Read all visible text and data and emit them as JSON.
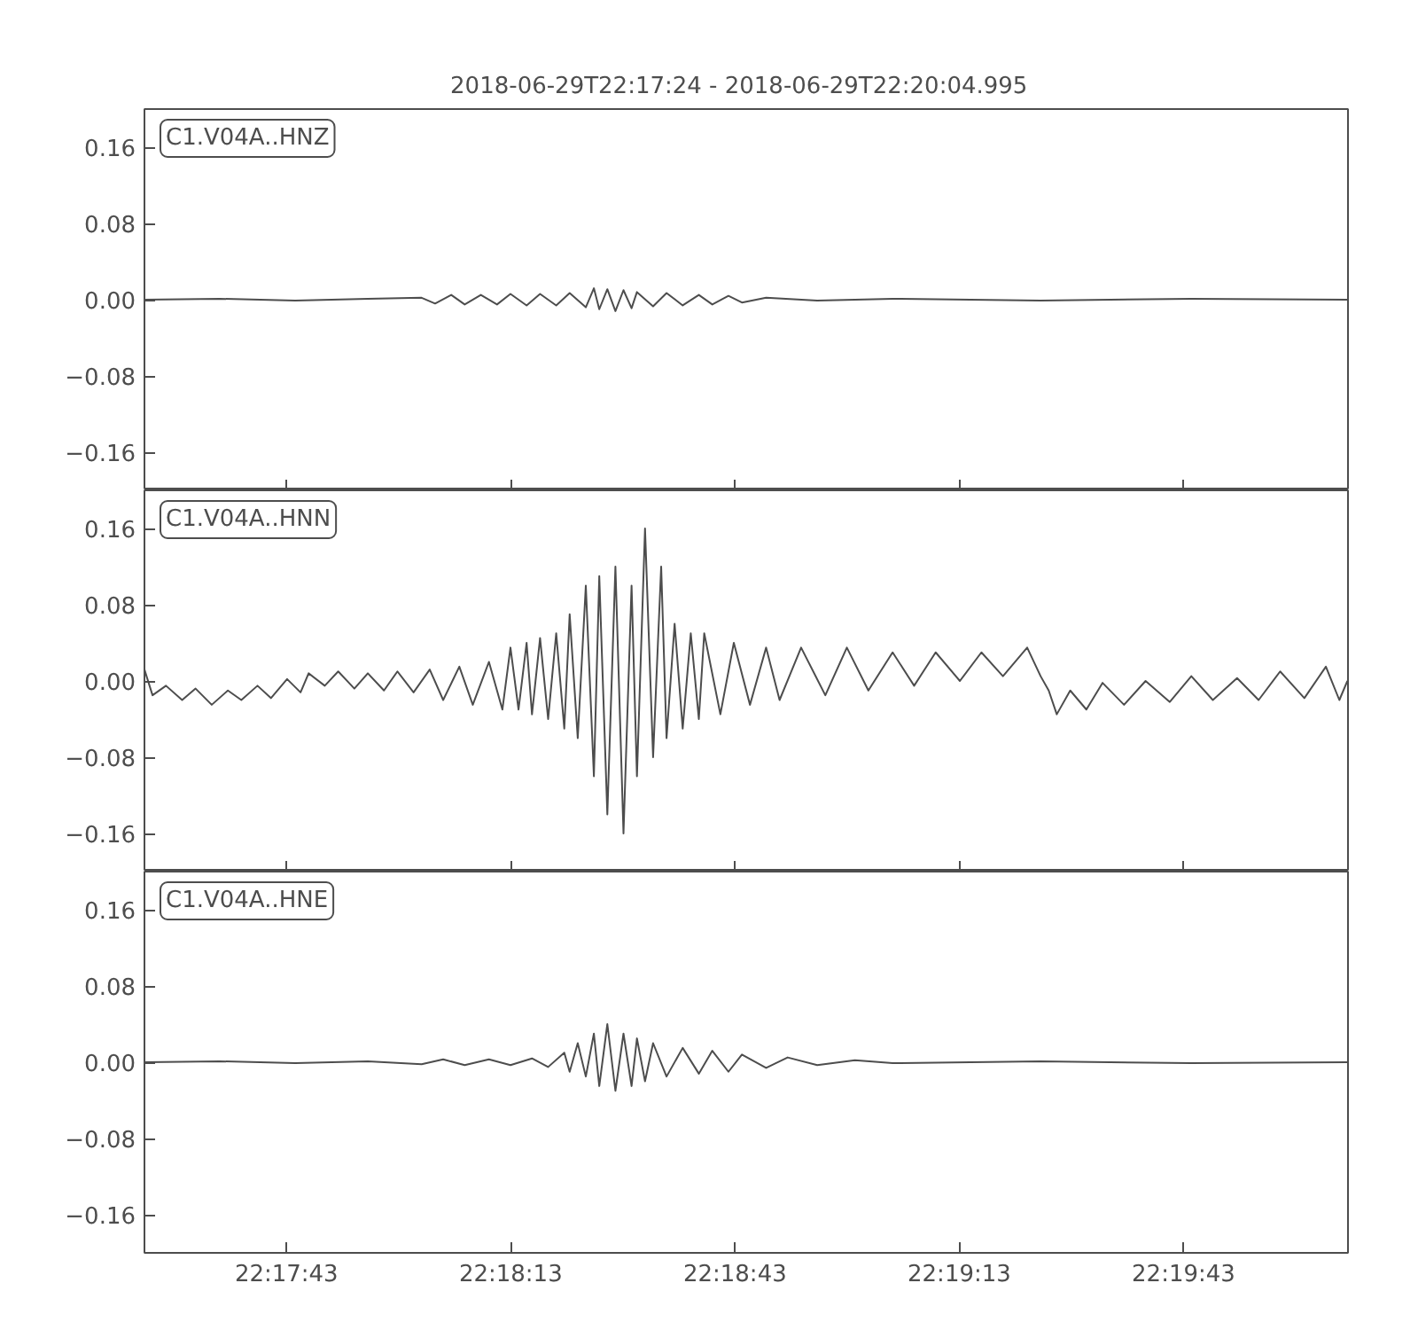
{
  "chart_data": [
    {
      "type": "line",
      "title": "2018-06-29T22:17:24  -  2018-06-29T22:20:04.995",
      "annotations": [
        "C1.V04A..HNZ"
      ],
      "xlim": [
        22.29,
        22.334721
      ],
      "xticks": [
        {
          "value": 22.295278,
          "label": null
        },
        {
          "value": 22.303611,
          "label": null
        },
        {
          "value": 22.311944,
          "label": null
        },
        {
          "value": 22.320278,
          "label": null
        },
        {
          "value": 22.328611,
          "label": null
        }
      ],
      "ylim": [
        -0.2,
        0.2
      ],
      "yticks": [
        {
          "value": 0.16,
          "label": "0.16"
        },
        {
          "value": 0.08,
          "label": "0.08"
        },
        {
          "value": 0,
          "label": "0.00"
        },
        {
          "value": -0.08,
          "label": "−0.08"
        },
        {
          "value": -0.16,
          "label": "−0.16"
        }
      ],
      "tick_labels": "y",
      "grid": false,
      "series": [
        {
          "color": "#4d4d4d",
          "x": [
            22.29,
            22.2928,
            22.2956,
            22.2983,
            22.3003,
            22.3008,
            22.3014,
            22.3019,
            22.3025,
            22.3031,
            22.3036,
            22.3042,
            22.3047,
            22.3053,
            22.3058,
            22.3064,
            22.3067,
            22.3069,
            22.3072,
            22.3075,
            22.3078,
            22.3081,
            22.3083,
            22.3089,
            22.3094,
            22.31,
            22.3106,
            22.3111,
            22.3117,
            22.3122,
            22.3131,
            22.315,
            22.3178,
            22.3233,
            22.3289,
            22.3347
          ],
          "values": [
            0,
            0.001,
            -0.001,
            0.001,
            0.002,
            -0.004,
            0.005,
            -0.005,
            0.005,
            -0.005,
            0.006,
            -0.006,
            0.006,
            -0.006,
            0.007,
            -0.008,
            0.012,
            -0.01,
            0.011,
            -0.012,
            0.01,
            -0.009,
            0.008,
            -0.007,
            0.007,
            -0.006,
            0.005,
            -0.005,
            0.004,
            -0.003,
            0.002,
            -0.001,
            0.001,
            -0.001,
            0.001,
            0
          ]
        }
      ]
    },
    {
      "type": "line",
      "annotations": [
        "C1.V04A..HNN"
      ],
      "xlim": [
        22.29,
        22.334721
      ],
      "xticks": [
        {
          "value": 22.295278,
          "label": null
        },
        {
          "value": 22.303611,
          "label": null
        },
        {
          "value": 22.311944,
          "label": null
        },
        {
          "value": 22.320278,
          "label": null
        },
        {
          "value": 22.328611,
          "label": null
        }
      ],
      "ylim": [
        -0.2,
        0.2
      ],
      "yticks": [
        {
          "value": 0.16,
          "label": "0.16"
        },
        {
          "value": 0.08,
          "label": "0.08"
        },
        {
          "value": 0,
          "label": "0.00"
        },
        {
          "value": -0.08,
          "label": "−0.08"
        },
        {
          "value": -0.16,
          "label": "−0.16"
        }
      ],
      "tick_labels": "y",
      "grid": false,
      "series": [
        {
          "color": "#4d4d4d",
          "x": [
            22.29,
            22.2903,
            22.2908,
            22.2914,
            22.2919,
            22.2925,
            22.2931,
            22.2936,
            22.2942,
            22.2947,
            22.2953,
            22.2958,
            22.2961,
            22.2967,
            22.2972,
            22.2978,
            22.2983,
            22.2989,
            22.2994,
            22.3,
            22.3006,
            22.3011,
            22.3017,
            22.3022,
            22.3028,
            22.3033,
            22.3036,
            22.3039,
            22.3042,
            22.3044,
            22.3047,
            22.305,
            22.3053,
            22.3056,
            22.3058,
            22.3061,
            22.3064,
            22.3067,
            22.3069,
            22.3072,
            22.3075,
            22.3078,
            22.3081,
            22.3083,
            22.3086,
            22.3089,
            22.3092,
            22.3094,
            22.3097,
            22.31,
            22.3103,
            22.3106,
            22.3108,
            22.3114,
            22.3119,
            22.3125,
            22.3131,
            22.3136,
            22.3144,
            22.3153,
            22.3161,
            22.3169,
            22.3178,
            22.3186,
            22.3194,
            22.3203,
            22.3211,
            22.3219,
            22.3228,
            22.3233,
            22.3236,
            22.3239,
            22.3244,
            22.325,
            22.3256,
            22.3264,
            22.3272,
            22.3281,
            22.3289,
            22.3297,
            22.3306,
            22.3314,
            22.3322,
            22.3331,
            22.3339,
            22.3344,
            22.3347
          ],
          "values": [
            0.012,
            -0.015,
            -0.005,
            -0.02,
            -0.008,
            -0.025,
            -0.01,
            -0.02,
            -0.005,
            -0.018,
            0.002,
            -0.012,
            0.008,
            -0.005,
            0.01,
            -0.008,
            0.008,
            -0.01,
            0.01,
            -0.012,
            0.012,
            -0.02,
            0.015,
            -0.025,
            0.02,
            -0.03,
            0.035,
            -0.03,
            0.04,
            -0.035,
            0.045,
            -0.04,
            0.05,
            -0.05,
            0.07,
            -0.06,
            0.1,
            -0.1,
            0.11,
            -0.14,
            0.12,
            -0.16,
            0.1,
            -0.1,
            0.16,
            -0.08,
            0.12,
            -0.06,
            0.06,
            -0.05,
            0.05,
            -0.04,
            0.05,
            -0.035,
            0.04,
            -0.025,
            0.035,
            -0.02,
            0.035,
            -0.015,
            0.035,
            -0.01,
            0.03,
            -0.005,
            0.03,
            0.0,
            0.03,
            0.005,
            0.035,
            0.005,
            -0.01,
            -0.035,
            -0.01,
            -0.03,
            -0.002,
            -0.025,
            0.0,
            -0.022,
            0.005,
            -0.02,
            0.003,
            -0.02,
            0.01,
            -0.018,
            0.015,
            -0.02,
            0.0
          ]
        }
      ]
    },
    {
      "type": "line",
      "annotations": [
        "C1.V04A..HNE"
      ],
      "xlim": [
        22.29,
        22.334721
      ],
      "xticks": [
        {
          "value": 22.295278,
          "label": "22:17:43"
        },
        {
          "value": 22.303611,
          "label": "22:18:13"
        },
        {
          "value": 22.311944,
          "label": "22:18:43"
        },
        {
          "value": 22.320278,
          "label": "22:19:13"
        },
        {
          "value": 22.328611,
          "label": "22:19:43"
        }
      ],
      "ylim": [
        -0.2,
        0.2
      ],
      "yticks": [
        {
          "value": 0.16,
          "label": "0.16"
        },
        {
          "value": 0.08,
          "label": "0.08"
        },
        {
          "value": 0,
          "label": "0.00"
        },
        {
          "value": -0.08,
          "label": "−0.08"
        },
        {
          "value": -0.16,
          "label": "−0.16"
        }
      ],
      "grid": false,
      "series": [
        {
          "color": "#4d4d4d",
          "x": [
            22.29,
            22.2928,
            22.2956,
            22.2983,
            22.3003,
            22.3011,
            22.3019,
            22.3028,
            22.3036,
            22.3044,
            22.305,
            22.3056,
            22.3058,
            22.3061,
            22.3064,
            22.3067,
            22.3069,
            22.3072,
            22.3075,
            22.3078,
            22.3081,
            22.3083,
            22.3086,
            22.3089,
            22.3094,
            22.31,
            22.3106,
            22.3111,
            22.3117,
            22.3122,
            22.3131,
            22.3139,
            22.315,
            22.3164,
            22.3178,
            22.3233,
            22.3289,
            22.3347
          ],
          "values": [
            0,
            0.001,
            -0.001,
            0.001,
            -0.002,
            0.003,
            -0.003,
            0.003,
            -0.003,
            0.004,
            -0.005,
            0.01,
            -0.01,
            0.02,
            -0.015,
            0.03,
            -0.025,
            0.04,
            -0.03,
            0.03,
            -0.025,
            0.025,
            -0.02,
            0.02,
            -0.015,
            0.015,
            -0.012,
            0.012,
            -0.01,
            0.008,
            -0.006,
            0.005,
            -0.003,
            0.002,
            -0.001,
            0.001,
            -0.001,
            0
          ]
        }
      ]
    }
  ]
}
